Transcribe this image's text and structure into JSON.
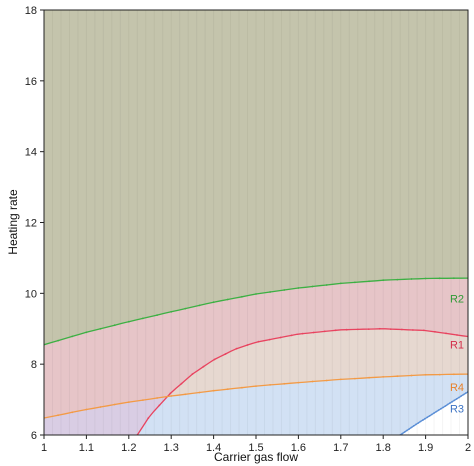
{
  "chart_data": {
    "type": "area",
    "title": "",
    "xlabel": "Carrier gas flow",
    "ylabel": "Heating rate",
    "xlim": [
      1,
      2
    ],
    "ylim": [
      6,
      18
    ],
    "x_ticks": [
      "1",
      "1.1",
      "1.2",
      "1.3",
      "1.4",
      "1.5",
      "1.6",
      "1.7",
      "1.8",
      "1.9",
      "2"
    ],
    "y_ticks": [
      "6",
      "8",
      "10",
      "12",
      "14",
      "16",
      "18"
    ],
    "grid": false,
    "legend": "none",
    "background_color": "#c4c4ac",
    "series": [
      {
        "name": "R2",
        "line_color": "#3cb043",
        "fill_color": "#c4c4ac",
        "label_color": "#2e9a36",
        "x": [
          1.0,
          1.1,
          1.2,
          1.3,
          1.4,
          1.5,
          1.6,
          1.7,
          1.8,
          1.9,
          2.0
        ],
        "y": [
          8.55,
          8.9,
          9.2,
          9.48,
          9.75,
          9.98,
          10.15,
          10.28,
          10.37,
          10.42,
          10.43
        ]
      },
      {
        "name": "R1",
        "line_color": "#e8435f",
        "fill_color": "#e6c5c8",
        "label_color": "#d42d4a",
        "x": [
          1.22,
          1.25,
          1.3,
          1.35,
          1.4,
          1.45,
          1.5,
          1.6,
          1.7,
          1.8,
          1.9,
          2.0
        ],
        "y": [
          6.0,
          6.55,
          7.2,
          7.72,
          8.12,
          8.42,
          8.62,
          8.85,
          8.97,
          9.0,
          8.95,
          8.78
        ]
      },
      {
        "name": "R4",
        "line_color": "#f39a45",
        "fill_color": "#e6d8d0",
        "label_color": "#e8812a",
        "x": [
          1.0,
          1.1,
          1.2,
          1.3,
          1.4,
          1.5,
          1.6,
          1.7,
          1.8,
          1.9,
          2.0
        ],
        "y": [
          6.48,
          6.72,
          6.93,
          7.1,
          7.25,
          7.38,
          7.48,
          7.57,
          7.64,
          7.7,
          7.72
        ]
      },
      {
        "name": "R3",
        "line_color": "#5a8ed6",
        "fill_color": "#d2e1f4",
        "label_color": "#3d74c4",
        "x": [
          1.84,
          1.88,
          1.92,
          1.96,
          2.0
        ],
        "y": [
          6.0,
          6.32,
          6.62,
          6.92,
          7.22
        ]
      }
    ],
    "colors": {
      "r1_r4_overlap": "#d9cde4",
      "below_r3_outside": "#ffffff"
    }
  }
}
